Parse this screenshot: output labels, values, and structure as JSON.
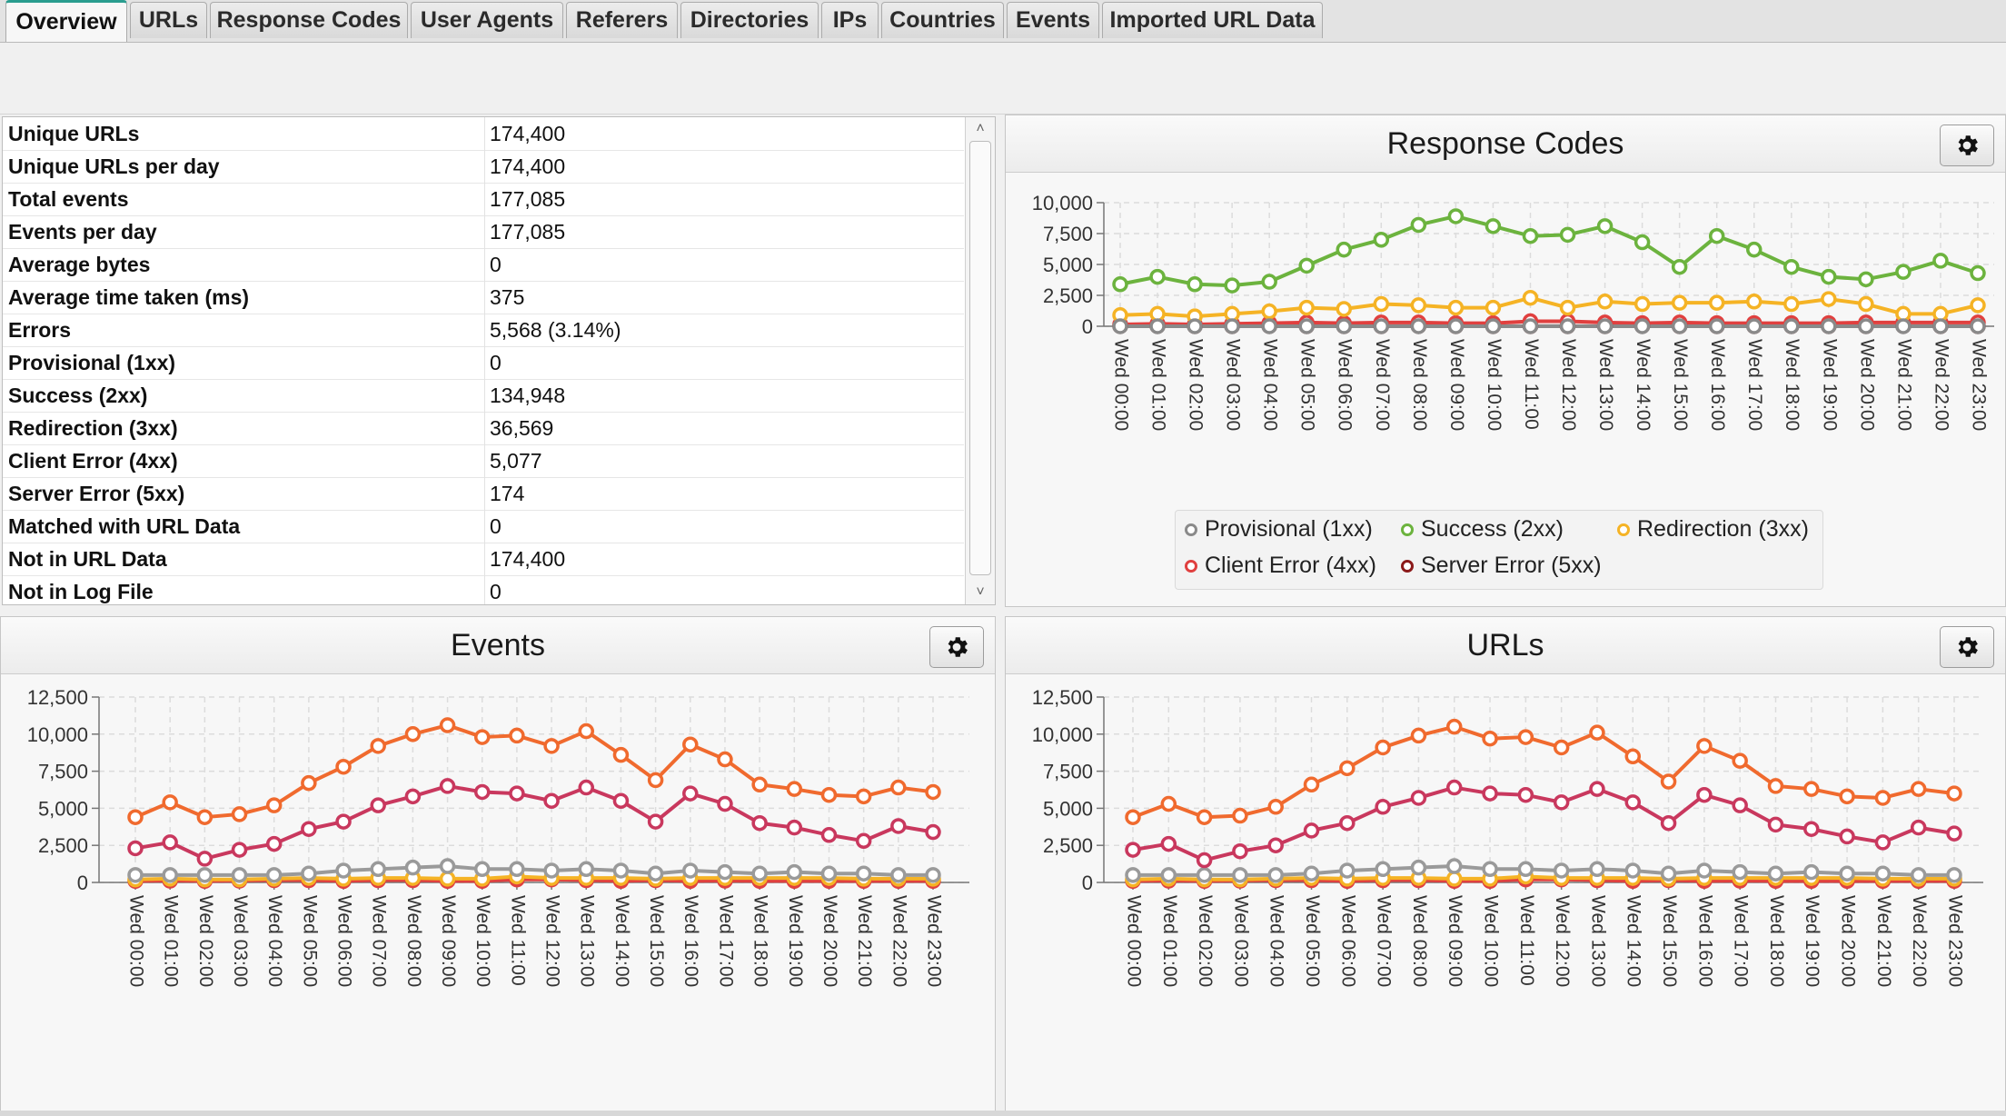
{
  "tabs": [
    "Overview",
    "URLs",
    "Response Codes",
    "User Agents",
    "Referers",
    "Directories",
    "IPs",
    "Countries",
    "Events",
    "Imported URL Data"
  ],
  "active_tab": "Overview",
  "stats": [
    {
      "label": "Unique URLs",
      "value": "174,400"
    },
    {
      "label": "Unique URLs per day",
      "value": "174,400"
    },
    {
      "label": "Total events",
      "value": "177,085"
    },
    {
      "label": "Events per day",
      "value": "177,085"
    },
    {
      "label": "Average bytes",
      "value": "0"
    },
    {
      "label": "Average time taken (ms)",
      "value": "375"
    },
    {
      "label": "Errors",
      "value": "5,568 (3.14%)"
    },
    {
      "label": "Provisional (1xx)",
      "value": "0"
    },
    {
      "label": "Success (2xx)",
      "value": "134,948"
    },
    {
      "label": "Redirection (3xx)",
      "value": "36,569"
    },
    {
      "label": "Client Error (4xx)",
      "value": "5,077"
    },
    {
      "label": "Server Error (5xx)",
      "value": "174"
    },
    {
      "label": "Matched with URL Data",
      "value": "0"
    },
    {
      "label": "Not in URL Data",
      "value": "174,400"
    },
    {
      "label": "Not in Log File",
      "value": "0"
    }
  ],
  "icons": {
    "settings": "gear-icon",
    "scroll_up": "chevron-up-icon",
    "scroll_down": "chevron-down-icon"
  },
  "chart_data": [
    {
      "type": "line",
      "title": "Response Codes",
      "categories": [
        "Wed 00:00",
        "Wed 01:00",
        "Wed 02:00",
        "Wed 03:00",
        "Wed 04:00",
        "Wed 05:00",
        "Wed 06:00",
        "Wed 07:00",
        "Wed 08:00",
        "Wed 09:00",
        "Wed 10:00",
        "Wed 11:00",
        "Wed 12:00",
        "Wed 13:00",
        "Wed 14:00",
        "Wed 15:00",
        "Wed 16:00",
        "Wed 17:00",
        "Wed 18:00",
        "Wed 19:00",
        "Wed 20:00",
        "Wed 21:00",
        "Wed 22:00",
        "Wed 23:00"
      ],
      "yticks": [
        "0",
        "2,500",
        "5,000",
        "7,500",
        "10,000"
      ],
      "ylim": [
        0,
        10000
      ],
      "grid": true,
      "legend_position": "bottom",
      "series": [
        {
          "name": "Provisional (1xx)",
          "color": "#8a8a8a",
          "values": [
            0,
            0,
            0,
            0,
            0,
            0,
            0,
            0,
            0,
            0,
            0,
            0,
            0,
            0,
            0,
            0,
            0,
            0,
            0,
            0,
            0,
            0,
            0,
            0
          ]
        },
        {
          "name": "Success (2xx)",
          "color": "#6cb33e",
          "values": [
            3400,
            4000,
            3400,
            3300,
            3600,
            4900,
            6200,
            7000,
            8200,
            8900,
            8100,
            7300,
            7400,
            8100,
            6800,
            4800,
            7300,
            6200,
            4800,
            4000,
            3800,
            4400,
            5300,
            4300
          ]
        },
        {
          "name": "Redirection (3xx)",
          "color": "#f5b325",
          "values": [
            900,
            1000,
            800,
            1000,
            1200,
            1500,
            1400,
            1800,
            1700,
            1500,
            1500,
            2300,
            1500,
            2000,
            1800,
            1900,
            1900,
            2000,
            1800,
            2200,
            1800,
            1000,
            1000,
            1700
          ]
        },
        {
          "name": "Client Error (4xx)",
          "color": "#e0403f",
          "values": [
            150,
            200,
            150,
            200,
            250,
            300,
            250,
            300,
            300,
            250,
            250,
            400,
            400,
            300,
            250,
            300,
            250,
            250,
            250,
            250,
            300,
            300,
            300,
            300
          ]
        },
        {
          "name": "Server Error (5xx)",
          "color": "#8b1a1a",
          "values": [
            10,
            10,
            5,
            5,
            10,
            5,
            5,
            5,
            10,
            5,
            5,
            5,
            5,
            5,
            10,
            5,
            5,
            5,
            5,
            5,
            5,
            10,
            5,
            5
          ]
        }
      ]
    },
    {
      "type": "line",
      "title": "Events",
      "categories": [
        "Wed 00:00",
        "Wed 01:00",
        "Wed 02:00",
        "Wed 03:00",
        "Wed 04:00",
        "Wed 05:00",
        "Wed 06:00",
        "Wed 07:00",
        "Wed 08:00",
        "Wed 09:00",
        "Wed 10:00",
        "Wed 11:00",
        "Wed 12:00",
        "Wed 13:00",
        "Wed 14:00",
        "Wed 15:00",
        "Wed 16:00",
        "Wed 17:00",
        "Wed 18:00",
        "Wed 19:00",
        "Wed 20:00",
        "Wed 21:00",
        "Wed 22:00",
        "Wed 23:00"
      ],
      "yticks": [
        "0",
        "2,500",
        "5,000",
        "7,500",
        "10,000",
        "12,500"
      ],
      "ylim": [
        0,
        12500
      ],
      "grid": true,
      "series": [
        {
          "color": "#f06a2e",
          "values": [
            4400,
            5400,
            4400,
            4600,
            5200,
            6700,
            7800,
            9200,
            10000,
            10600,
            9800,
            9900,
            9200,
            10200,
            8600,
            6900,
            9300,
            8300,
            6600,
            6300,
            5900,
            5800,
            6400,
            6100
          ]
        },
        {
          "color": "#c9385e",
          "values": [
            2300,
            2700,
            1600,
            2200,
            2600,
            3600,
            4100,
            5200,
            5800,
            6500,
            6100,
            6000,
            5500,
            6400,
            5500,
            4100,
            6000,
            5300,
            4000,
            3700,
            3200,
            2800,
            3800,
            3400
          ]
        },
        {
          "color": "#9a9a9a",
          "values": [
            500,
            500,
            500,
            500,
            500,
            600,
            800,
            900,
            1000,
            1100,
            900,
            900,
            800,
            900,
            800,
            600,
            800,
            700,
            600,
            700,
            600,
            600,
            500,
            500
          ]
        },
        {
          "color": "#f5b325",
          "values": [
            200,
            250,
            200,
            200,
            250,
            300,
            250,
            300,
            300,
            250,
            250,
            400,
            300,
            300,
            300,
            250,
            300,
            300,
            300,
            300,
            300,
            250,
            250,
            250
          ]
        },
        {
          "color": "#e0403f",
          "values": [
            100,
            120,
            100,
            120,
            150,
            150,
            100,
            150,
            150,
            100,
            100,
            200,
            200,
            150,
            100,
            150,
            100,
            120,
            100,
            100,
            100,
            100,
            100,
            100
          ]
        }
      ]
    },
    {
      "type": "line",
      "title": "URLs",
      "categories": [
        "Wed 00:00",
        "Wed 01:00",
        "Wed 02:00",
        "Wed 03:00",
        "Wed 04:00",
        "Wed 05:00",
        "Wed 06:00",
        "Wed 07:00",
        "Wed 08:00",
        "Wed 09:00",
        "Wed 10:00",
        "Wed 11:00",
        "Wed 12:00",
        "Wed 13:00",
        "Wed 14:00",
        "Wed 15:00",
        "Wed 16:00",
        "Wed 17:00",
        "Wed 18:00",
        "Wed 19:00",
        "Wed 20:00",
        "Wed 21:00",
        "Wed 22:00",
        "Wed 23:00"
      ],
      "yticks": [
        "0",
        "2,500",
        "5,000",
        "7,500",
        "10,000",
        "12,500"
      ],
      "ylim": [
        0,
        12500
      ],
      "grid": true,
      "series": [
        {
          "color": "#f06a2e",
          "values": [
            4400,
            5300,
            4400,
            4500,
            5100,
            6600,
            7700,
            9100,
            9900,
            10500,
            9700,
            9800,
            9100,
            10100,
            8500,
            6800,
            9200,
            8200,
            6500,
            6300,
            5800,
            5700,
            6300,
            6000
          ]
        },
        {
          "color": "#c9385e",
          "values": [
            2200,
            2600,
            1500,
            2100,
            2500,
            3500,
            4000,
            5100,
            5700,
            6400,
            6000,
            5900,
            5400,
            6300,
            5400,
            4000,
            5900,
            5200,
            3900,
            3600,
            3100,
            2700,
            3700,
            3300
          ]
        },
        {
          "color": "#9a9a9a",
          "values": [
            500,
            500,
            500,
            500,
            500,
            600,
            800,
            900,
            1000,
            1100,
            900,
            900,
            800,
            900,
            800,
            600,
            800,
            700,
            600,
            700,
            600,
            600,
            500,
            500
          ]
        },
        {
          "color": "#f5b325",
          "values": [
            200,
            250,
            200,
            200,
            250,
            300,
            250,
            300,
            300,
            250,
            250,
            400,
            300,
            300,
            300,
            250,
            300,
            300,
            300,
            300,
            300,
            250,
            250,
            250
          ]
        },
        {
          "color": "#e0403f",
          "values": [
            100,
            120,
            100,
            120,
            150,
            150,
            100,
            150,
            150,
            100,
            100,
            200,
            200,
            150,
            100,
            150,
            100,
            120,
            100,
            100,
            100,
            100,
            100,
            100
          ]
        }
      ]
    }
  ]
}
